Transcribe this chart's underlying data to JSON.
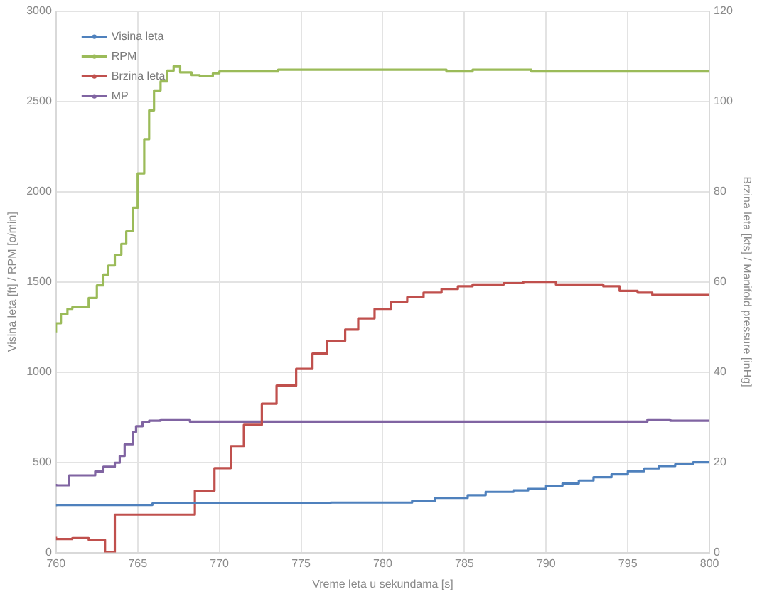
{
  "chart_data": {
    "type": "step",
    "xlabel": "Vreme leta u sekundama [s]",
    "ylabel": "Visina leta [ft] / RPM [o/min]",
    "y2label": "Brzina leta [kts] / Manifold pressure [inHg]",
    "xlim": [
      760,
      800
    ],
    "xticks": [
      760,
      765,
      770,
      775,
      780,
      785,
      790,
      795,
      800
    ],
    "ylim": [
      0,
      3000
    ],
    "yticks": [
      0,
      500,
      1000,
      1500,
      2000,
      2500,
      3000
    ],
    "y2lim": [
      0,
      120
    ],
    "y2ticks": [
      0,
      20,
      40,
      60,
      80,
      100,
      120
    ],
    "grid": true,
    "legend": "top left",
    "line_style": "solid",
    "series": [
      {
        "name": "Visina leta",
        "color": "#4f81bd",
        "x": [
          760,
          765.9,
          776.8,
          781.8,
          783.2,
          785.2,
          786.3,
          788,
          788.9,
          790,
          791,
          792,
          792.9,
          794,
          795,
          796,
          796.9,
          797.9,
          799,
          799.8,
          800
        ],
        "values": [
          256,
          264,
          272,
          277,
          287,
          303,
          318,
          336,
          344,
          352,
          370,
          383,
          399,
          417,
          433,
          451,
          466,
          479,
          489,
          500,
          500
        ]
      },
      {
        "name": "RPM",
        "color": "#9bbb59",
        "x": [
          760,
          760.3,
          760.7,
          761,
          762,
          762.5,
          762.9,
          763.2,
          763.6,
          764,
          764.3,
          764.7,
          765,
          765.4,
          765.7,
          766,
          766.4,
          766.8,
          767.2,
          767.6,
          768.3,
          768.8,
          769.6,
          770,
          773.6,
          783.9,
          785.5,
          789.1,
          796.2,
          800
        ],
        "values": [
          1220,
          1270,
          1320,
          1350,
          1360,
          1410,
          1480,
          1540,
          1590,
          1650,
          1710,
          1780,
          1910,
          2100,
          2290,
          2450,
          2560,
          2610,
          2670,
          2695,
          2660,
          2645,
          2640,
          2655,
          2665,
          2675,
          2665,
          2675,
          2665,
          2665
        ]
      },
      {
        "name": "Brzina leta",
        "color": "#c0504d",
        "axis": "y2",
        "x": [
          760,
          761,
          762,
          763,
          763.6,
          768.5,
          769.7,
          770.7,
          771.5,
          772.6,
          773.5,
          774.7,
          775.7,
          776.6,
          777.7,
          778.5,
          779.5,
          780.5,
          781.5,
          782.5,
          783.6,
          784.6,
          785.5,
          787.4,
          788.6,
          790.6,
          793.5,
          794.5,
          795.6,
          796.5,
          798.5,
          800
        ],
        "values": [
          3.5,
          3,
          3.2,
          2.8,
          0,
          8.4,
          13.7,
          18.7,
          23.6,
          28.3,
          33,
          37,
          40.7,
          44.1,
          46.9,
          49.4,
          51.9,
          54,
          55.6,
          56.6,
          57.6,
          58.4,
          59,
          59.4,
          59.7,
          60,
          59.4,
          59,
          58,
          57.6,
          57.1,
          57.1
        ]
      },
      {
        "name": "MP",
        "color": "#8064a2",
        "axis": "y2",
        "x": [
          760,
          760.8,
          762.4,
          762.9,
          763.6,
          763.9,
          764.2,
          764.7,
          764.9,
          765.3,
          765.7,
          766.4,
          768.2,
          796.2,
          797.6,
          799.5,
          800
        ],
        "values": [
          15.2,
          14.9,
          17.1,
          18,
          19,
          19.9,
          21.4,
          24,
          26.7,
          28,
          28.9,
          29.2,
          29.5,
          29,
          29.5,
          29.2,
          29.2
        ]
      }
    ]
  }
}
